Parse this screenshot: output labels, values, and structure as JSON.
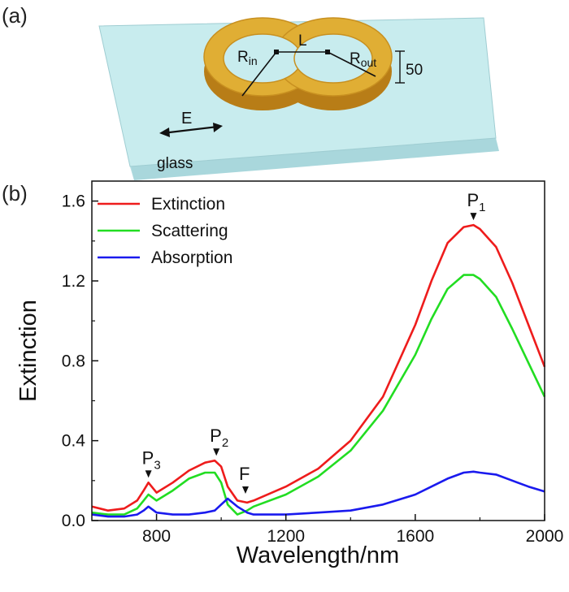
{
  "panels": {
    "a": "(a)",
    "b": "(b)"
  },
  "schematic": {
    "labels": {
      "r_in": "R",
      "r_in_sub": "in",
      "l": "L",
      "r_out": "R",
      "r_out_sub": "out",
      "height": "50",
      "field": "E",
      "substrate": "glass"
    },
    "colors": {
      "glass_top": "#c8ecee",
      "glass_side": "#a9d7dc",
      "gold": "#e0ae34",
      "gold_dark": "#b87d17"
    }
  },
  "chart_data": {
    "type": "line",
    "xlabel": "Wavelength/nm",
    "ylabel": "Extinction",
    "xlim": [
      600,
      2000
    ],
    "ylim": [
      0,
      1.7
    ],
    "xticks": [
      800,
      1200,
      1600,
      2000
    ],
    "xtick_labels": [
      "800",
      "1200",
      "1600",
      "2000"
    ],
    "yticks": [
      0.0,
      0.4,
      0.8,
      1.2,
      1.6
    ],
    "ytick_labels": [
      "0.0",
      "0.4",
      "0.8",
      "1.2",
      "1.6"
    ],
    "legend_position": "top-left",
    "grid": false,
    "x": [
      600,
      650,
      700,
      740,
      760,
      775,
      800,
      850,
      900,
      950,
      980,
      1000,
      1020,
      1050,
      1080,
      1100,
      1200,
      1300,
      1400,
      1500,
      1600,
      1650,
      1700,
      1750,
      1780,
      1800,
      1850,
      1900,
      1950,
      2000
    ],
    "series": [
      {
        "name": "Extinction",
        "color": "#ee1c1c",
        "values": [
          0.07,
          0.05,
          0.06,
          0.1,
          0.15,
          0.19,
          0.14,
          0.19,
          0.25,
          0.29,
          0.3,
          0.27,
          0.17,
          0.1,
          0.09,
          0.1,
          0.17,
          0.26,
          0.4,
          0.62,
          0.98,
          1.2,
          1.39,
          1.47,
          1.48,
          1.46,
          1.37,
          1.19,
          0.98,
          0.77
        ]
      },
      {
        "name": "Scattering",
        "color": "#22dd22",
        "values": [
          0.04,
          0.03,
          0.03,
          0.06,
          0.1,
          0.13,
          0.1,
          0.15,
          0.21,
          0.24,
          0.24,
          0.19,
          0.08,
          0.03,
          0.05,
          0.07,
          0.13,
          0.22,
          0.35,
          0.55,
          0.83,
          1.01,
          1.16,
          1.23,
          1.23,
          1.21,
          1.12,
          0.96,
          0.79,
          0.62
        ]
      },
      {
        "name": "Absorption",
        "color": "#1a1aee",
        "values": [
          0.03,
          0.02,
          0.02,
          0.03,
          0.05,
          0.07,
          0.04,
          0.03,
          0.03,
          0.04,
          0.05,
          0.08,
          0.11,
          0.07,
          0.04,
          0.03,
          0.03,
          0.04,
          0.05,
          0.08,
          0.13,
          0.17,
          0.21,
          0.24,
          0.245,
          0.24,
          0.23,
          0.2,
          0.17,
          0.145
        ]
      }
    ],
    "annotations": [
      {
        "label": "P",
        "sub": "1",
        "x": 1780,
        "y": 1.48
      },
      {
        "label": "P",
        "sub": "2",
        "x": 985,
        "y": 0.3
      },
      {
        "label": "F",
        "sub": "",
        "x": 1075,
        "y": 0.11
      },
      {
        "label": "P",
        "sub": "3",
        "x": 775,
        "y": 0.19
      }
    ]
  }
}
